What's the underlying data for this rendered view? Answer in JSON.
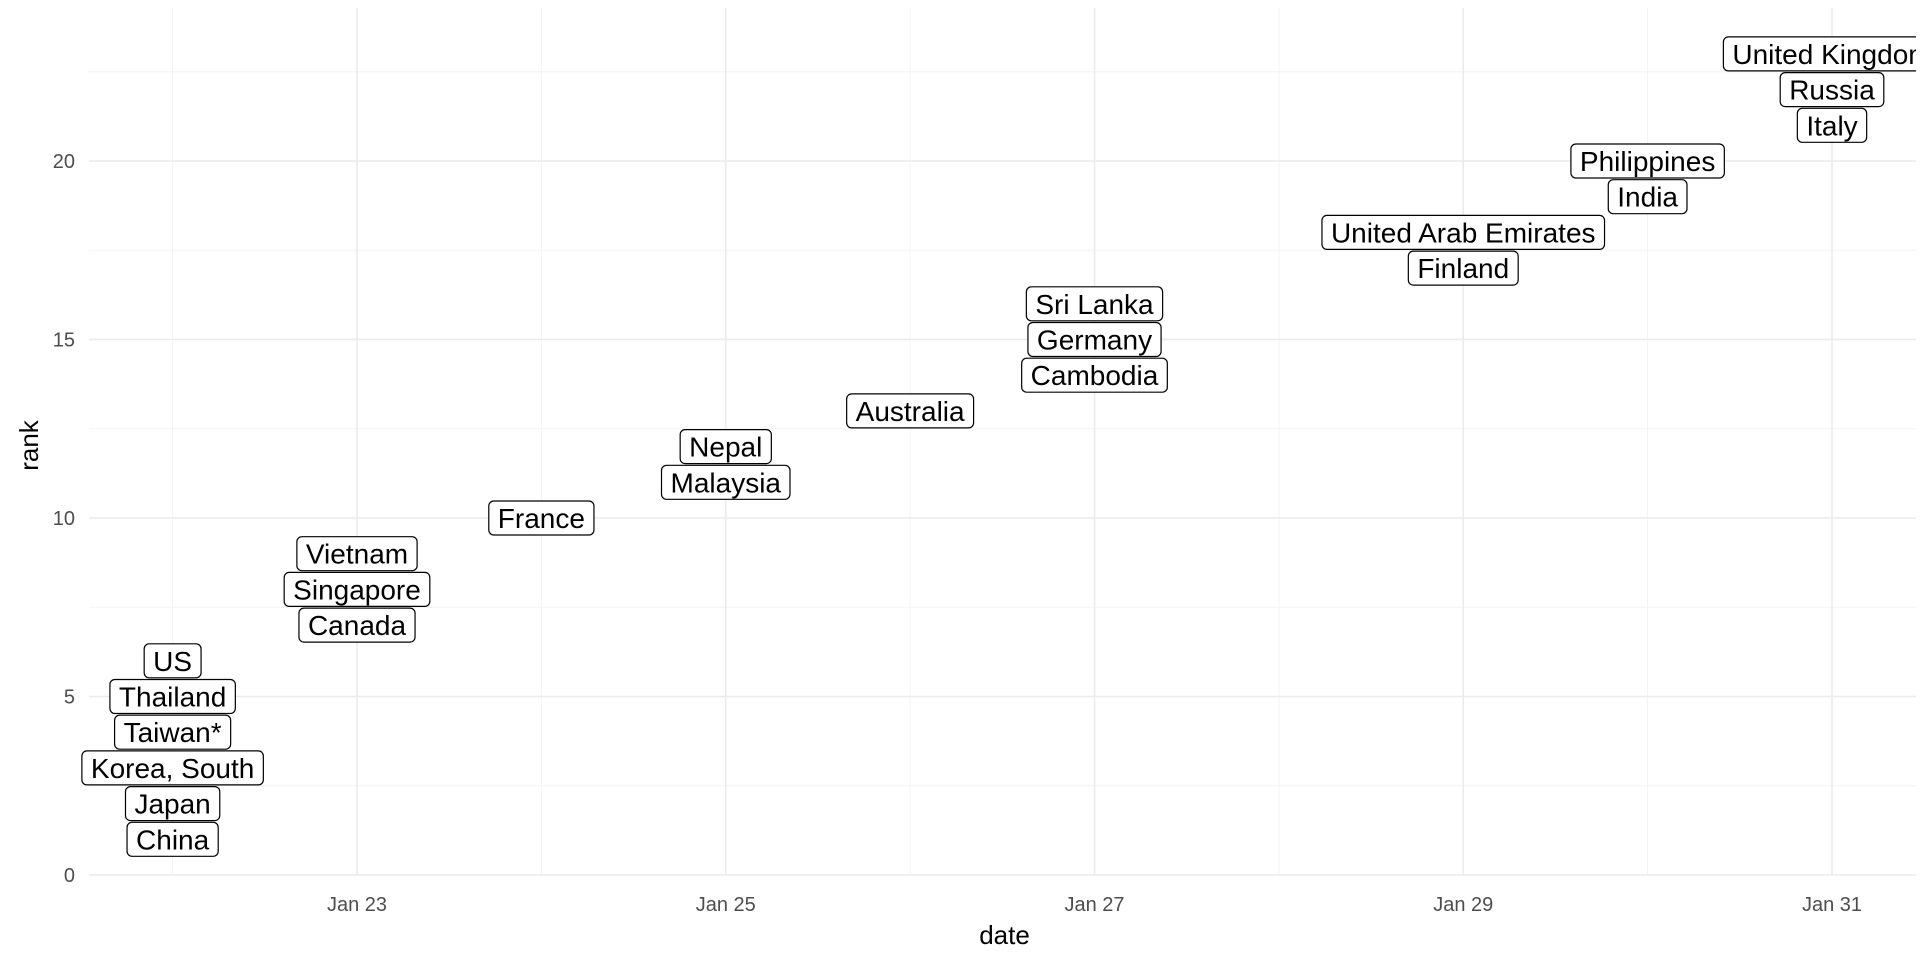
{
  "chart_data": {
    "type": "scatter",
    "xlabel": "date",
    "ylabel": "rank",
    "xlim": [
      "2020-01-21",
      "2020-01-31"
    ],
    "ylim": [
      0,
      23
    ],
    "x_ticks": [
      "2020-01-23",
      "2020-01-25",
      "2020-01-27",
      "2020-01-29",
      "2020-01-31"
    ],
    "x_tick_labels": [
      "Jan 23",
      "Jan 25",
      "Jan 27",
      "Jan 29",
      "Jan 31"
    ],
    "y_ticks": [
      0,
      5,
      10,
      15,
      20
    ],
    "y_tick_labels": [
      "0",
      "5",
      "10",
      "15",
      "20"
    ],
    "grid": true,
    "legend": "none",
    "points": [
      {
        "label": "China",
        "date": "2020-01-22",
        "rank": 1
      },
      {
        "label": "Japan",
        "date": "2020-01-22",
        "rank": 2
      },
      {
        "label": "Korea, South",
        "date": "2020-01-22",
        "rank": 3
      },
      {
        "label": "Taiwan*",
        "date": "2020-01-22",
        "rank": 4
      },
      {
        "label": "Thailand",
        "date": "2020-01-22",
        "rank": 5
      },
      {
        "label": "US",
        "date": "2020-01-22",
        "rank": 6
      },
      {
        "label": "Canada",
        "date": "2020-01-23",
        "rank": 7
      },
      {
        "label": "Singapore",
        "date": "2020-01-23",
        "rank": 8
      },
      {
        "label": "Vietnam",
        "date": "2020-01-23",
        "rank": 9
      },
      {
        "label": "France",
        "date": "2020-01-24",
        "rank": 10
      },
      {
        "label": "Malaysia",
        "date": "2020-01-25",
        "rank": 11
      },
      {
        "label": "Nepal",
        "date": "2020-01-25",
        "rank": 12
      },
      {
        "label": "Australia",
        "date": "2020-01-26",
        "rank": 13
      },
      {
        "label": "Cambodia",
        "date": "2020-01-27",
        "rank": 14
      },
      {
        "label": "Germany",
        "date": "2020-01-27",
        "rank": 15
      },
      {
        "label": "Sri Lanka",
        "date": "2020-01-27",
        "rank": 16
      },
      {
        "label": "Finland",
        "date": "2020-01-29",
        "rank": 17
      },
      {
        "label": "United Arab Emirates",
        "date": "2020-01-29",
        "rank": 18
      },
      {
        "label": "India",
        "date": "2020-01-30",
        "rank": 19
      },
      {
        "label": "Philippines",
        "date": "2020-01-30",
        "rank": 20
      },
      {
        "label": "Italy",
        "date": "2020-01-31",
        "rank": 21
      },
      {
        "label": "Russia",
        "date": "2020-01-31",
        "rank": 22
      },
      {
        "label": "United Kingdom",
        "date": "2020-01-31",
        "rank": 23
      }
    ]
  }
}
